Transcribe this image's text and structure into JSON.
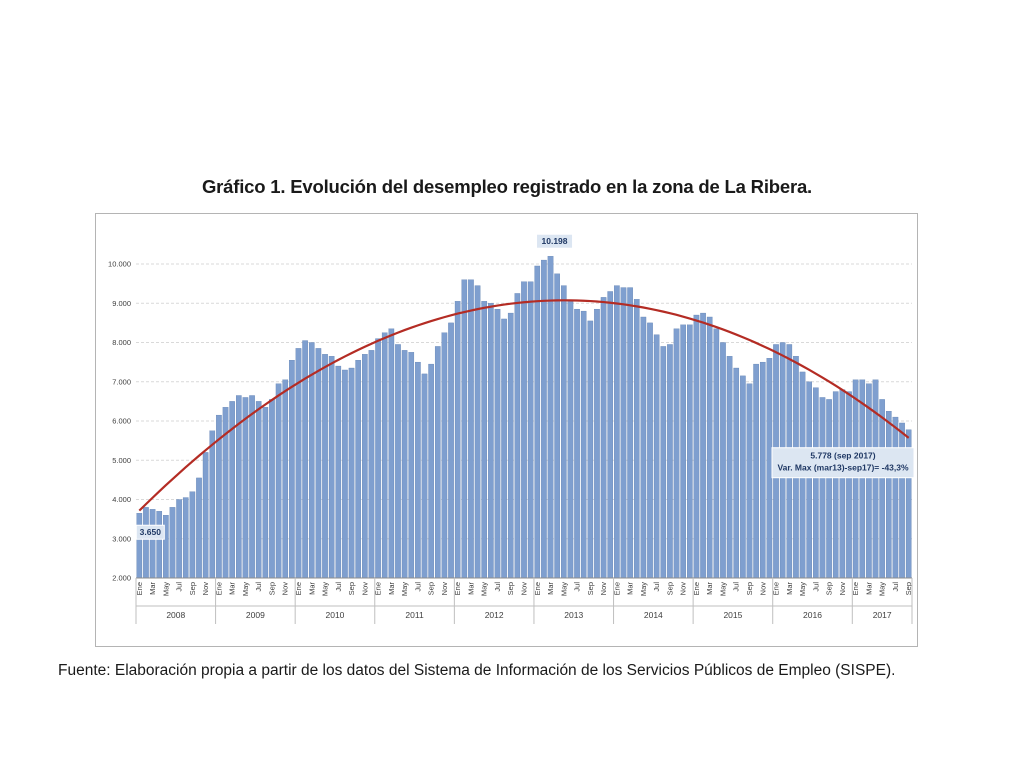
{
  "title": "Gráfico 1. Evolución del desempleo registrado en la zona de La Ribera.",
  "source": "Fuente: Elaboración propia a partir de los datos del Sistema de Información de los Servicios Públicos de Empleo (SISPE).",
  "colors": {
    "bar": "#7f9fcf",
    "bar_edge": "#5577aa",
    "trend": "#b42c24",
    "grid": "#d9d9d9",
    "annotation_bg": "#dce6f2"
  },
  "chart_data": {
    "type": "bar",
    "ylim": [
      2000,
      10000
    ],
    "yticks": [
      2000,
      3000,
      4000,
      5000,
      6000,
      7000,
      8000,
      9000,
      10000
    ],
    "ytick_labels": [
      "2.000",
      "3.000",
      "4.000",
      "5.000",
      "6.000",
      "7.000",
      "8.000",
      "9.000",
      "10.000"
    ],
    "month_labels": [
      "Ene",
      "Mar",
      "May",
      "Jul",
      "Sep",
      "Nov"
    ],
    "years": [
      "2008",
      "2009",
      "2010",
      "2011",
      "2012",
      "2013",
      "2014",
      "2015",
      "2016",
      "2017"
    ],
    "start": "2008-01",
    "end": "2017-09",
    "series": [
      {
        "type": "bar",
        "values": [
          3650,
          3800,
          3750,
          3700,
          3600,
          3800,
          4000,
          4050,
          4200,
          4550,
          5200,
          5750,
          6150,
          6350,
          6500,
          6650,
          6600,
          6650,
          6500,
          6350,
          6550,
          6950,
          7050,
          7550,
          7850,
          8050,
          8000,
          7850,
          7700,
          7650,
          7400,
          7300,
          7350,
          7550,
          7700,
          7800,
          8100,
          8250,
          8350,
          7950,
          7800,
          7750,
          7500,
          7200,
          7450,
          7900,
          8250,
          8500,
          9050,
          9600,
          9600,
          9450,
          9050,
          9000,
          8850,
          8600,
          8750,
          9250,
          9550,
          9550,
          9950,
          10100,
          10198,
          9750,
          9450,
          9050,
          8850,
          8800,
          8550,
          8850,
          9150,
          9300,
          9450,
          9400,
          9400,
          9100,
          8650,
          8500,
          8200,
          7900,
          7950,
          8350,
          8450,
          8450,
          8700,
          8750,
          8650,
          8350,
          8000,
          7650,
          7350,
          7150,
          6950,
          7450,
          7500,
          7600,
          7950,
          8000,
          7950,
          7650,
          7250,
          7000,
          6850,
          6600,
          6550,
          6750,
          6800,
          6750,
          7050,
          7050,
          6950,
          7050,
          6550,
          6250,
          6100,
          5950,
          5778
        ]
      },
      {
        "type": "line",
        "trend": "polynomial"
      }
    ],
    "annotations": [
      {
        "label": "3.650"
      },
      {
        "label": "10.198"
      },
      {
        "lines": [
          "5.778 (sep 2017)",
          "Var. Max (mar13)-sep17)= -43,3%"
        ]
      }
    ]
  }
}
